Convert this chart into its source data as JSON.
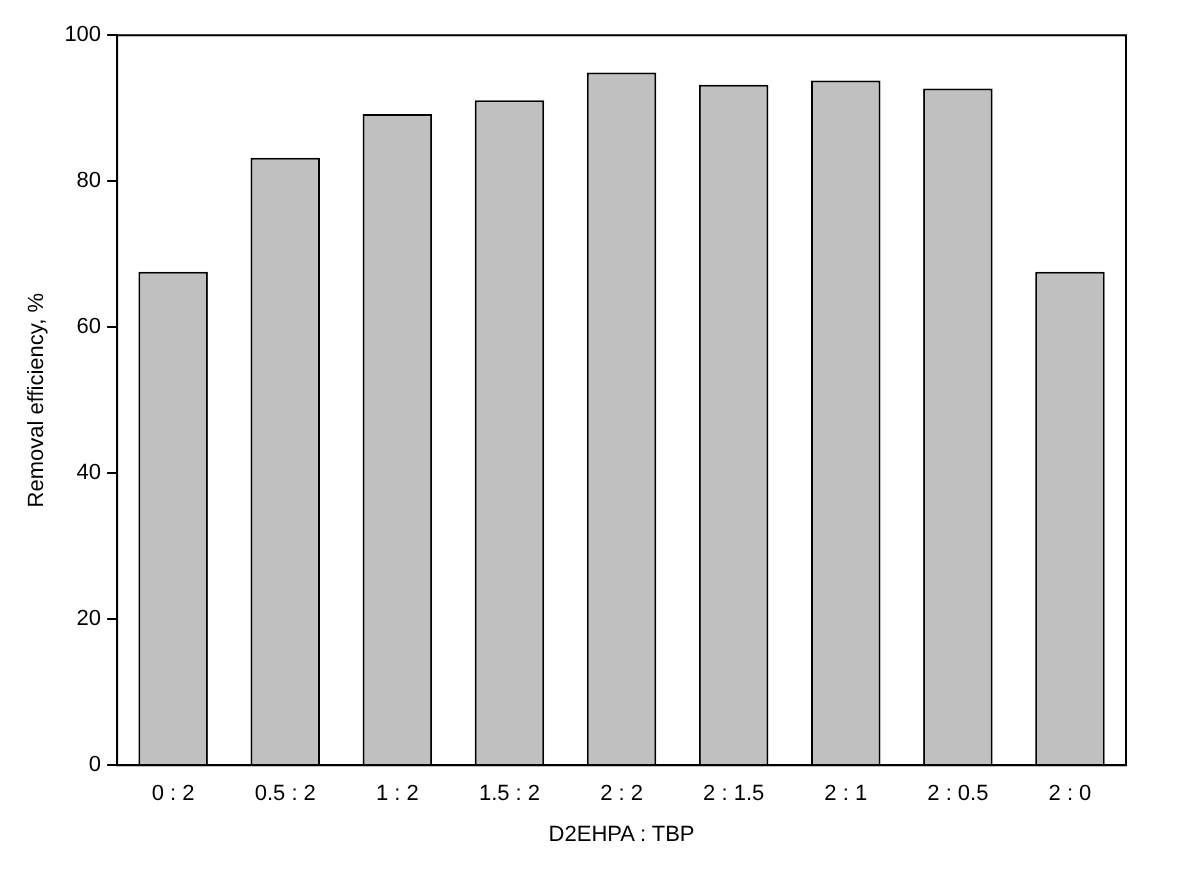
{
  "chart_data": {
    "type": "bar",
    "xlabel": "D2EHPA : TBP",
    "ylabel": "Removal efficiency, %",
    "categories": [
      "0 : 2",
      "0.5 : 2",
      "1 : 2",
      "1.5 : 2",
      "2 : 2",
      "2 : 1.5",
      "2 : 1",
      "2 : 0.5",
      "2 : 0"
    ],
    "series": [
      {
        "color": "#c0c0c0",
        "values": [
          67.6,
          83.2,
          89.2,
          91.1,
          94.9,
          93.2,
          93.8,
          92.7,
          67.6
        ]
      }
    ],
    "ylim": [
      0,
      100
    ],
    "yticks": [
      0,
      20,
      40,
      60,
      80,
      100
    ],
    "grid": false,
    "legend": false
  }
}
